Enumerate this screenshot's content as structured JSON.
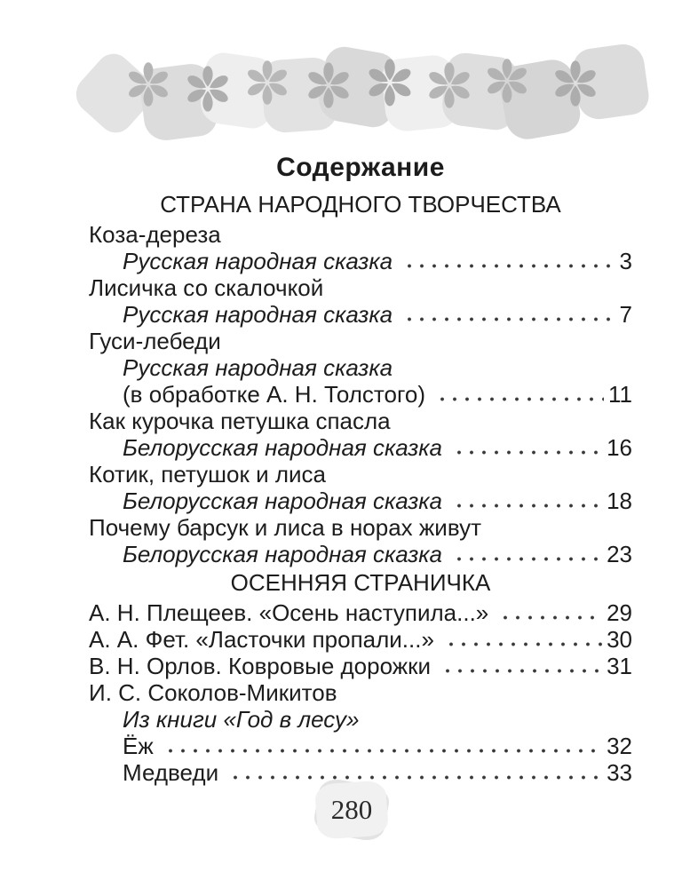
{
  "page": {
    "title": "Содержание",
    "page_number": "280"
  },
  "colors": {
    "text": "#1c1c1c",
    "leader_dots": "#3a3a3a",
    "decor_square_light": "#efefef",
    "decor_square_dark": "#d7d7d7",
    "decor_flower": "#b3b3b3",
    "badge_background": "#f1f1f1"
  },
  "contents": {
    "sections": [
      {
        "heading": "СТРАНА НАРОДНОГО ТВОРЧЕСТВА",
        "entries": [
          {
            "lines": [
              {
                "text": "Коза-дереза",
                "italic": false,
                "indent": 0
              },
              {
                "text": "Русская народная сказка",
                "italic": true,
                "indent": 1,
                "page": "3"
              }
            ]
          },
          {
            "lines": [
              {
                "text": "Лисичка со скалочкой",
                "italic": false,
                "indent": 0
              },
              {
                "text": "Русская народная сказка",
                "italic": true,
                "indent": 1,
                "page": "7"
              }
            ]
          },
          {
            "lines": [
              {
                "text": "Гуси-лебеди",
                "italic": false,
                "indent": 0
              },
              {
                "text": "Русская народная сказка",
                "italic": true,
                "indent": 1
              },
              {
                "text": "(в обработке А. Н. Толстого)",
                "italic": false,
                "indent": 1,
                "page": "11"
              }
            ]
          },
          {
            "lines": [
              {
                "text": "Как курочка петушка спасла",
                "italic": false,
                "indent": 0
              },
              {
                "text": "Белорусская народная сказка",
                "italic": true,
                "indent": 1,
                "page": "16"
              }
            ]
          },
          {
            "lines": [
              {
                "text": "Котик, петушок и лиса",
                "italic": false,
                "indent": 0
              },
              {
                "text": "Белорусская народная сказка",
                "italic": true,
                "indent": 1,
                "page": "18"
              }
            ]
          },
          {
            "lines": [
              {
                "text": "Почему барсук и лиса в норах живут",
                "italic": false,
                "indent": 0
              },
              {
                "text": "Белорусская народная сказка",
                "italic": true,
                "indent": 1,
                "page": "23"
              }
            ]
          }
        ]
      },
      {
        "heading": "ОСЕННЯЯ СТРАНИЧКА",
        "entries": [
          {
            "lines": [
              {
                "text": "А. Н. Плещеев. «Осень наступила...»",
                "italic": false,
                "indent": 0,
                "page": "29"
              }
            ]
          },
          {
            "lines": [
              {
                "text": "А. А. Фет. «Ласточки пропали...»",
                "italic": false,
                "indent": 0,
                "page": "30"
              }
            ]
          },
          {
            "lines": [
              {
                "text": "В. Н. Орлов. Ковровые дорожки",
                "italic": false,
                "indent": 0,
                "page": "31"
              }
            ]
          },
          {
            "lines": [
              {
                "text": "И. С. Соколов-Микитов",
                "italic": false,
                "indent": 0
              },
              {
                "text": "Из книги «Год в лесу»",
                "italic": true,
                "indent": 1
              },
              {
                "text": "Ёж",
                "italic": false,
                "indent": 1,
                "page": "32"
              },
              {
                "text": "Медведи",
                "italic": false,
                "indent": 1,
                "page": "33"
              }
            ]
          }
        ]
      }
    ]
  }
}
